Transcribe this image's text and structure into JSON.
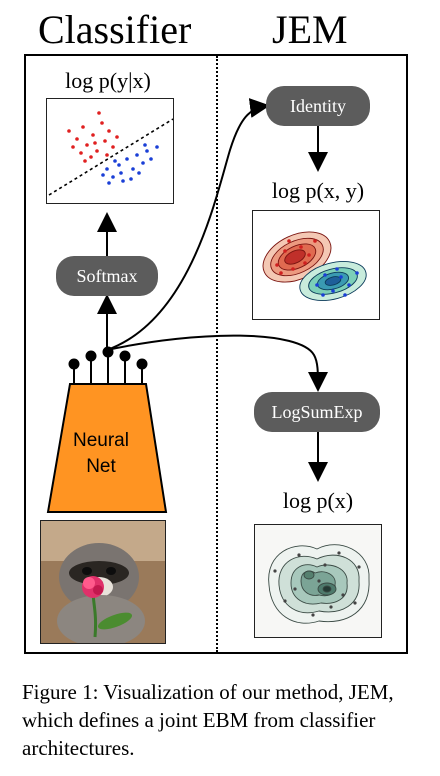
{
  "headers": {
    "left": "Classifier",
    "right": "JEM"
  },
  "left": {
    "formula": "log p(y|x)",
    "softmax_label": "Softmax",
    "net_label_line1": "Neural",
    "net_label_line2": "Net"
  },
  "right": {
    "identity_label": "Identity",
    "joint_formula": "log p(x, y)",
    "logsumexp_label": "LogSumExp",
    "marginal_formula": "log p(x)"
  },
  "caption": "Figure 1: Visualization of our method, JEM, which defines a joint EBM from classifier architectures.",
  "colors": {
    "pill": "#5c5c5c",
    "net": "#ff9422",
    "class_red": "#e02020",
    "class_blue": "#1a3fd6"
  }
}
